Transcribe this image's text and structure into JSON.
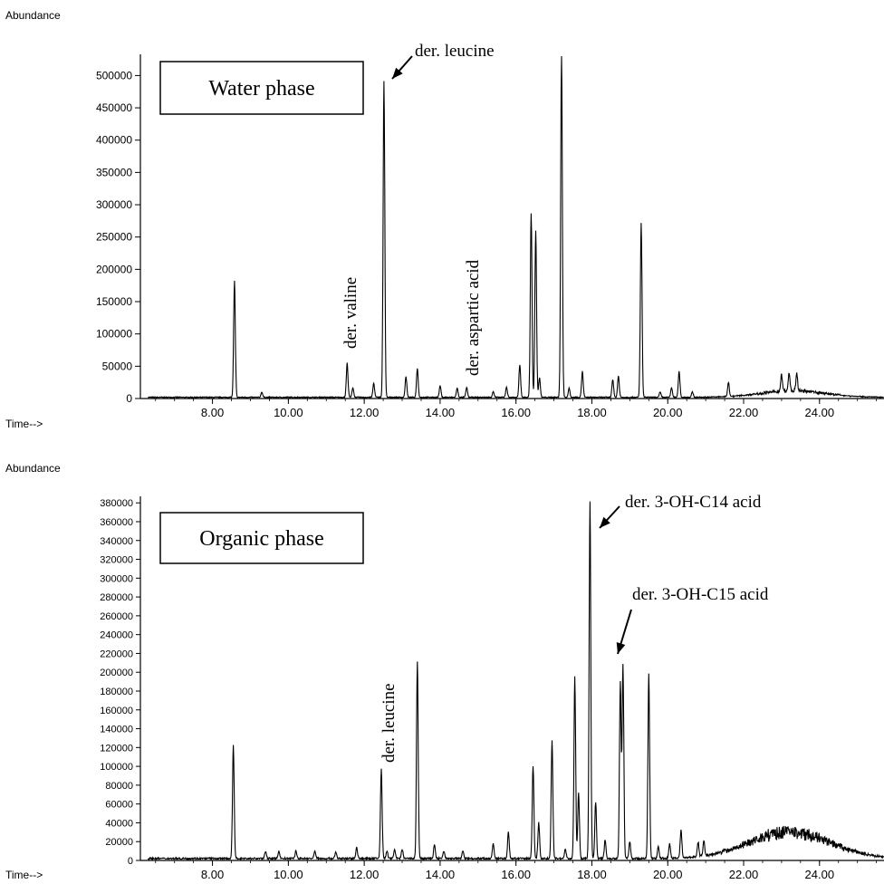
{
  "chart_data": [
    {
      "type": "line",
      "ylabel": "Abundance",
      "xlabel": "Time-->",
      "x_ticks": [
        "8.00",
        "10.00",
        "12.00",
        "14.00",
        "16.00",
        "18.00",
        "20.00",
        "22.00",
        "24.00"
      ],
      "y_ticks": [
        "0",
        "50000",
        "100000",
        "150000",
        "200000",
        "250000",
        "300000",
        "350000",
        "400000",
        "450000",
        "500000"
      ],
      "xlim": [
        6.1,
        25.7
      ],
      "ylim": [
        0,
        530000
      ],
      "legend_box": "Water phase",
      "peaks": [
        {
          "x": 8.58,
          "y": 180000
        },
        {
          "x": 9.3,
          "y": 8000
        },
        {
          "x": 11.55,
          "y": 53000
        },
        {
          "x": 11.7,
          "y": 15000
        },
        {
          "x": 12.25,
          "y": 22000
        },
        {
          "x": 12.52,
          "y": 490000
        },
        {
          "x": 13.1,
          "y": 32000
        },
        {
          "x": 13.4,
          "y": 45000
        },
        {
          "x": 14.0,
          "y": 18000
        },
        {
          "x": 14.45,
          "y": 14000
        },
        {
          "x": 14.7,
          "y": 15000
        },
        {
          "x": 15.4,
          "y": 9000
        },
        {
          "x": 15.75,
          "y": 16000
        },
        {
          "x": 16.1,
          "y": 50000
        },
        {
          "x": 16.4,
          "y": 285000
        },
        {
          "x": 16.52,
          "y": 258000
        },
        {
          "x": 16.62,
          "y": 30000
        },
        {
          "x": 17.2,
          "y": 530000
        },
        {
          "x": 17.4,
          "y": 14000
        },
        {
          "x": 17.75,
          "y": 40000
        },
        {
          "x": 18.55,
          "y": 28000
        },
        {
          "x": 18.7,
          "y": 33000
        },
        {
          "x": 19.3,
          "y": 270000
        },
        {
          "x": 19.8,
          "y": 8000
        },
        {
          "x": 20.1,
          "y": 15000
        },
        {
          "x": 20.3,
          "y": 40000
        },
        {
          "x": 20.65,
          "y": 8000
        },
        {
          "x": 21.6,
          "y": 22000
        },
        {
          "x": 23.0,
          "y": 26000
        },
        {
          "x": 23.2,
          "y": 28000
        },
        {
          "x": 23.4,
          "y": 26000
        }
      ],
      "hump": {
        "center": 23.3,
        "width": 1.2,
        "height": 10000
      },
      "annotations": [
        {
          "text": "der. leucine",
          "x": 12.52,
          "y": 490000,
          "orientation": "arrow"
        },
        {
          "text": "der. valine",
          "x": 11.55,
          "y": 53000,
          "orientation": "vertical"
        },
        {
          "text": "der. aspartic acid",
          "x": 14.7,
          "y": 15000,
          "orientation": "vertical"
        }
      ]
    },
    {
      "type": "line",
      "ylabel": "Abundance",
      "xlabel": "Time-->",
      "x_ticks": [
        "8.00",
        "10.00",
        "12.00",
        "14.00",
        "16.00",
        "18.00",
        "20.00",
        "22.00",
        "24.00"
      ],
      "y_ticks": [
        "0",
        "20000",
        "40000",
        "60000",
        "80000",
        "100000",
        "120000",
        "140000",
        "160000",
        "180000",
        "200000",
        "220000",
        "240000",
        "260000",
        "280000",
        "300000",
        "320000",
        "340000",
        "360000",
        "380000"
      ],
      "xlim": [
        6.1,
        25.7
      ],
      "ylim": [
        0,
        385000
      ],
      "legend_box": "Organic phase",
      "peaks": [
        {
          "x": 8.55,
          "y": 120000
        },
        {
          "x": 9.4,
          "y": 8000
        },
        {
          "x": 9.75,
          "y": 8000
        },
        {
          "x": 10.2,
          "y": 8000
        },
        {
          "x": 10.7,
          "y": 8000
        },
        {
          "x": 11.25,
          "y": 7000
        },
        {
          "x": 11.8,
          "y": 12000
        },
        {
          "x": 12.45,
          "y": 95000
        },
        {
          "x": 12.6,
          "y": 8000
        },
        {
          "x": 12.8,
          "y": 10000
        },
        {
          "x": 13.0,
          "y": 10000
        },
        {
          "x": 13.4,
          "y": 210000
        },
        {
          "x": 13.85,
          "y": 15000
        },
        {
          "x": 14.1,
          "y": 8000
        },
        {
          "x": 14.6,
          "y": 8000
        },
        {
          "x": 15.4,
          "y": 16000
        },
        {
          "x": 15.8,
          "y": 28000
        },
        {
          "x": 16.45,
          "y": 98000
        },
        {
          "x": 16.6,
          "y": 38000
        },
        {
          "x": 16.95,
          "y": 125000
        },
        {
          "x": 17.3,
          "y": 10000
        },
        {
          "x": 17.55,
          "y": 193000
        },
        {
          "x": 17.65,
          "y": 70000
        },
        {
          "x": 17.95,
          "y": 380000
        },
        {
          "x": 18.1,
          "y": 60000
        },
        {
          "x": 18.35,
          "y": 20000
        },
        {
          "x": 18.75,
          "y": 188000
        },
        {
          "x": 18.82,
          "y": 205000
        },
        {
          "x": 19.0,
          "y": 18000
        },
        {
          "x": 19.5,
          "y": 197000
        },
        {
          "x": 19.75,
          "y": 12000
        },
        {
          "x": 20.05,
          "y": 15000
        },
        {
          "x": 20.35,
          "y": 30000
        },
        {
          "x": 20.8,
          "y": 15000
        },
        {
          "x": 20.95,
          "y": 16000
        }
      ],
      "hump": {
        "center": 23.2,
        "width": 1.5,
        "height": 28000
      },
      "annotations": [
        {
          "text": "der. 3-OH-C14 acid",
          "x": 17.95,
          "y": 380000,
          "orientation": "arrow"
        },
        {
          "text": "der. 3-OH-C15 acid",
          "x": 18.82,
          "y": 205000,
          "orientation": "arrow"
        },
        {
          "text": "der. leucine",
          "x": 12.45,
          "y": 95000,
          "orientation": "vertical"
        }
      ]
    }
  ]
}
